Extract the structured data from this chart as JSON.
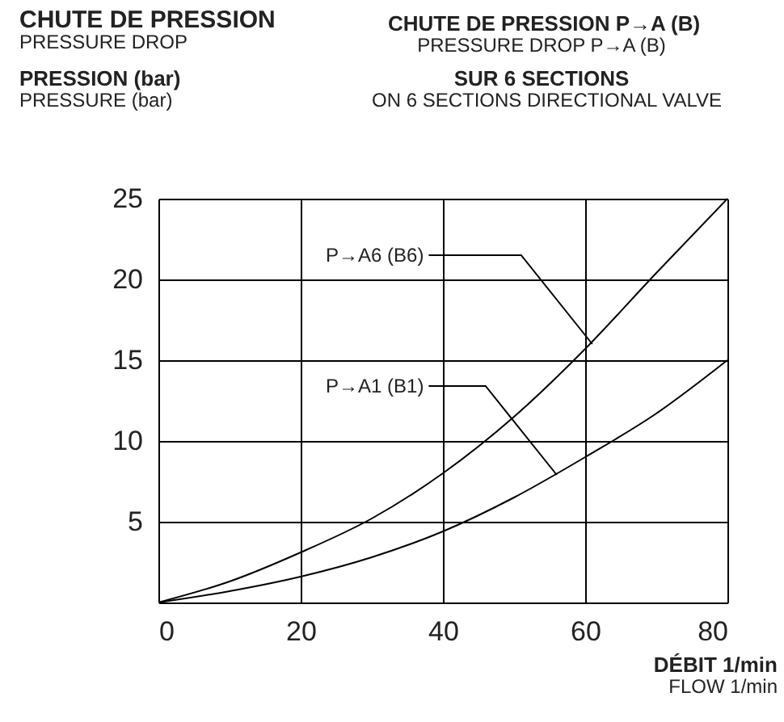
{
  "chart_data": {
    "type": "line",
    "title": "CHUTE DE PRESSION",
    "subtitle": "PRESSURE DROP",
    "ylabel": "PRESSION (bar)\nPRESSURE (bar)",
    "xlabel": "DÉBIT  1/min\nFLOW  1/min",
    "x": [
      0,
      10,
      20,
      30,
      40,
      50,
      60,
      70,
      80
    ],
    "series": [
      {
        "color": "#000000",
        "values": [
          0,
          1.3,
          3.1,
          5.2,
          8.0,
          11.5,
          15.7,
          20.4,
          25
        ]
      },
      {
        "color": "#000000",
        "values": [
          0,
          0.7,
          1.6,
          2.8,
          4.4,
          6.5,
          9.0,
          11.7,
          15
        ]
      }
    ],
    "xlim": [
      0,
      80
    ],
    "ylim": [
      0,
      25
    ],
    "xticks": [
      0,
      20,
      40,
      60,
      80
    ],
    "yticks": [
      5,
      10,
      15,
      20,
      25
    ],
    "grid": true,
    "annotations": [
      "CHUTE DE PRESSION P→A (B)\nPRESSURE DROP P→A (B)",
      "SUR 6 SECTIONS\nON 6 SECTIONS DIRECTIONAL VALVE",
      {
        "text": "P→A6 (B6)",
        "x": 61,
        "y": 16
      },
      {
        "text": "P→A1 (B1)",
        "x": 56,
        "y": 7.9
      }
    ]
  }
}
